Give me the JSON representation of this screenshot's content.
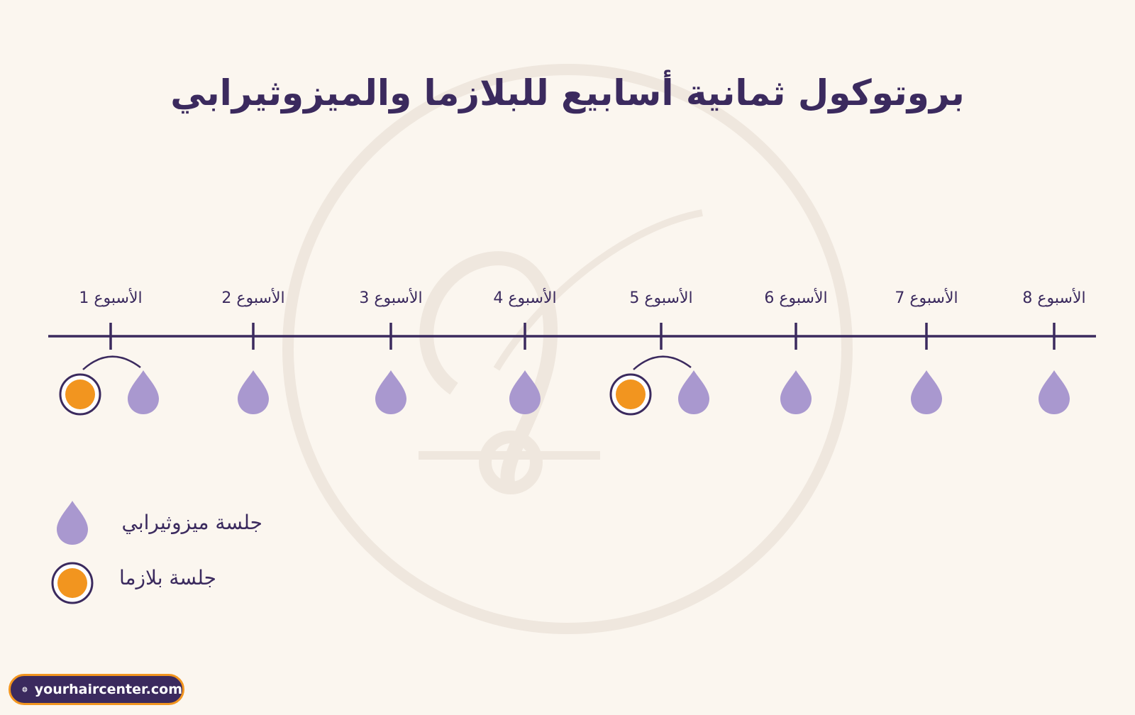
{
  "title": "بروتوكول ثمانية أسابيع للبلازما والميزوثيرابي",
  "weeks": [
    {
      "label": "الأسبوع 1",
      "sessions": [
        "plasma",
        "mesotherapy"
      ]
    },
    {
      "label": "الأسبوع 2",
      "sessions": [
        "mesotherapy"
      ]
    },
    {
      "label": "الأسبوع 3",
      "sessions": [
        "mesotherapy"
      ]
    },
    {
      "label": "الأسبوع 4",
      "sessions": [
        "mesotherapy"
      ]
    },
    {
      "label": "الأسبوع 5",
      "sessions": [
        "plasma",
        "mesotherapy"
      ]
    },
    {
      "label": "الأسبوع 6",
      "sessions": [
        "mesotherapy"
      ]
    },
    {
      "label": "الأسبوع 7",
      "sessions": [
        "mesotherapy"
      ]
    },
    {
      "label": "الأسبوع 8",
      "sessions": [
        "mesotherapy"
      ]
    }
  ],
  "legend": {
    "mesotherapy": "جلسة ميزوثيرابي",
    "plasma": "جلسة بلازما"
  },
  "website": "yourhaircenter.com",
  "icons": {
    "mesotherapy": "droplet-icon",
    "plasma": "orange-circle-icon",
    "website": "globe-icon"
  },
  "colors": {
    "background": "#fbf6ef",
    "primary": "#3b2a5e",
    "droplet": "#a998cf",
    "plasma": "#f2951f",
    "watermark": "#efe7de"
  }
}
